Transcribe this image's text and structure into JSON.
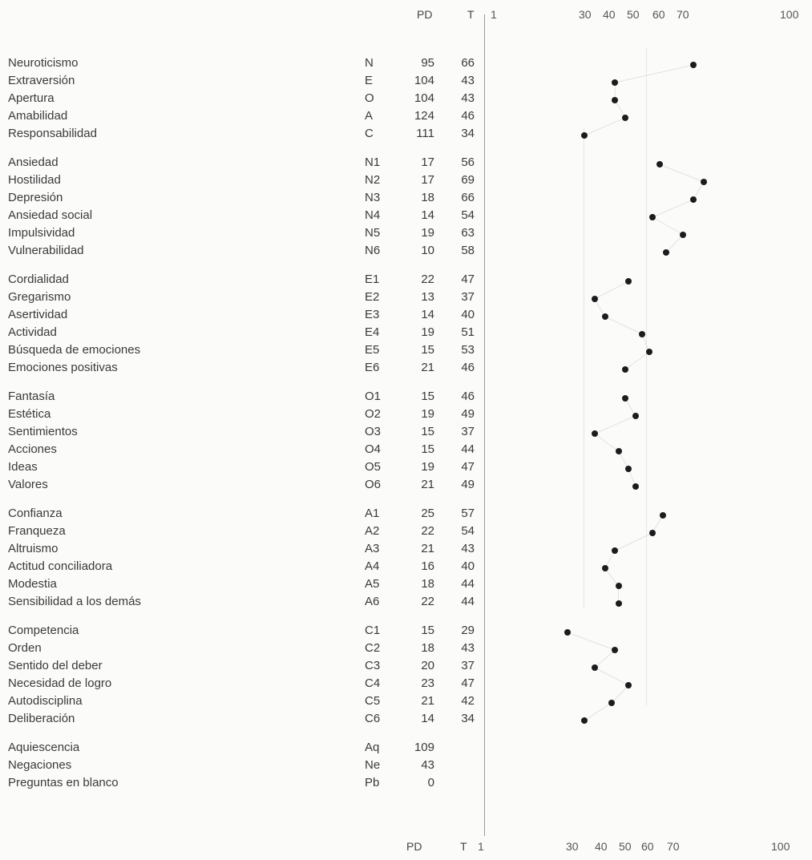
{
  "header": {
    "pd_label": "PD",
    "t_label": "T",
    "scale": [
      "1",
      "30",
      "40",
      "50",
      "60",
      "70",
      "100"
    ]
  },
  "footer": {
    "pd_label": "PD",
    "t_label": "T",
    "scale": [
      "1",
      "30",
      "40",
      "50",
      "60",
      "70",
      "100"
    ]
  },
  "rows": [
    {
      "name": "Neuroticismo",
      "code": "N",
      "pd": "95",
      "t": "66"
    },
    {
      "name": "Extraversión",
      "code": "E",
      "pd": "104",
      "t": "43"
    },
    {
      "name": "Apertura",
      "code": "O",
      "pd": "104",
      "t": "43"
    },
    {
      "name": "Amabilidad",
      "code": "A",
      "pd": "124",
      "t": "46"
    },
    {
      "name": "Responsabilidad",
      "code": "C",
      "pd": "111",
      "t": "34"
    },
    {
      "name": "Ansiedad",
      "code": "N1",
      "pd": "17",
      "t": "56"
    },
    {
      "name": "Hostilidad",
      "code": "N2",
      "pd": "17",
      "t": "69"
    },
    {
      "name": "Depresión",
      "code": "N3",
      "pd": "18",
      "t": "66"
    },
    {
      "name": "Ansiedad social",
      "code": "N4",
      "pd": "14",
      "t": "54"
    },
    {
      "name": "Impulsividad",
      "code": "N5",
      "pd": "19",
      "t": "63"
    },
    {
      "name": "Vulnerabilidad",
      "code": "N6",
      "pd": "10",
      "t": "58"
    },
    {
      "name": "Cordialidad",
      "code": "E1",
      "pd": "22",
      "t": "47"
    },
    {
      "name": "Gregarismo",
      "code": "E2",
      "pd": "13",
      "t": "37"
    },
    {
      "name": "Asertividad",
      "code": "E3",
      "pd": "14",
      "t": "40"
    },
    {
      "name": "Actividad",
      "code": "E4",
      "pd": "19",
      "t": "51"
    },
    {
      "name": "Búsqueda de emociones",
      "code": "E5",
      "pd": "15",
      "t": "53"
    },
    {
      "name": "Emociones positivas",
      "code": "E6",
      "pd": "21",
      "t": "46"
    },
    {
      "name": "Fantasía",
      "code": "O1",
      "pd": "15",
      "t": "46"
    },
    {
      "name": "Estética",
      "code": "O2",
      "pd": "19",
      "t": "49"
    },
    {
      "name": "Sentimientos",
      "code": "O3",
      "pd": "15",
      "t": "37"
    },
    {
      "name": "Acciones",
      "code": "O4",
      "pd": "15",
      "t": "44"
    },
    {
      "name": "Ideas",
      "code": "O5",
      "pd": "19",
      "t": "47"
    },
    {
      "name": "Valores",
      "code": "O6",
      "pd": "21",
      "t": "49"
    },
    {
      "name": "Confianza",
      "code": "A1",
      "pd": "25",
      "t": "57"
    },
    {
      "name": "Franqueza",
      "code": "A2",
      "pd": "22",
      "t": "54"
    },
    {
      "name": "Altruismo",
      "code": "A3",
      "pd": "21",
      "t": "43"
    },
    {
      "name": "Actitud conciliadora",
      "code": "A4",
      "pd": "16",
      "t": "40"
    },
    {
      "name": "Modestia",
      "code": "A5",
      "pd": "18",
      "t": "44"
    },
    {
      "name": "Sensibilidad a los demás",
      "code": "A6",
      "pd": "22",
      "t": "44"
    },
    {
      "name": "Competencia",
      "code": "C1",
      "pd": "15",
      "t": "29"
    },
    {
      "name": "Orden",
      "code": "C2",
      "pd": "18",
      "t": "43"
    },
    {
      "name": "Sentido del deber",
      "code": "C3",
      "pd": "20",
      "t": "37"
    },
    {
      "name": "Necesidad de logro",
      "code": "C4",
      "pd": "23",
      "t": "47"
    },
    {
      "name": "Autodisciplina",
      "code": "C5",
      "pd": "21",
      "t": "42"
    },
    {
      "name": "Deliberación",
      "code": "C6",
      "pd": "14",
      "t": "34"
    },
    {
      "name": "Aquiescencia",
      "code": "Aq",
      "pd": "109",
      "t": ""
    },
    {
      "name": "Negaciones",
      "code": "Ne",
      "pd": "43",
      "t": ""
    },
    {
      "name": "Preguntas en blanco",
      "code": "Pb",
      "pd": "0",
      "t": ""
    }
  ]
}
